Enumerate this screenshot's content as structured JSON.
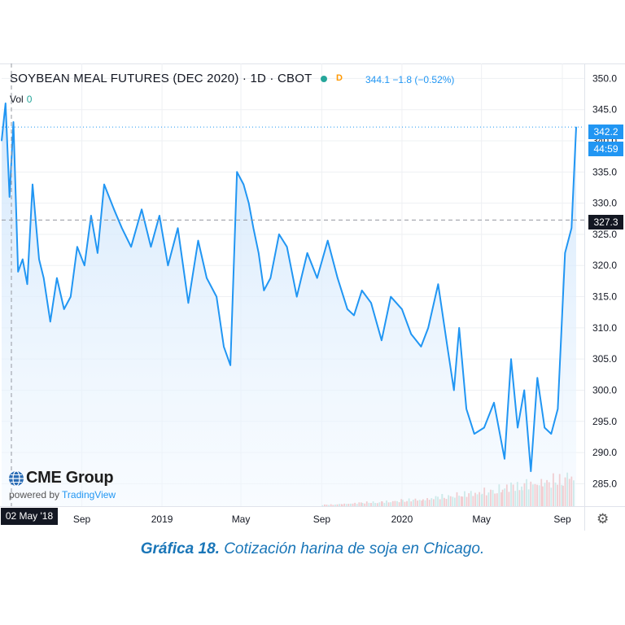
{
  "header": {
    "title": "SOYBEAN MEAL FUTURES (DEC 2020) · 1D · CBOT",
    "d_badge": "D",
    "quote": "344.1  −1.8 (−0.52%)",
    "vol_label": "Vol",
    "vol_value": "0"
  },
  "price_tags": {
    "last_price": "342.2",
    "countdown": "44:59",
    "crosshair_price": "327.3"
  },
  "crosshair_date": "02 May '18",
  "branding": {
    "logo_text": "CME Group",
    "powered_by": "powered by",
    "powered_link": "TradingView"
  },
  "caption": {
    "bold": "Gráfica 18.",
    "text": " Cotización harina de soja en Chicago."
  },
  "colors": {
    "line": "#2196f3",
    "volume_up": "#f2a0a0",
    "volume_down": "#a8dcd4",
    "grid": "#eef0f3",
    "crosshair": "#9598a1"
  },
  "chart_data": {
    "type": "area",
    "title": "SOYBEAN MEAL FUTURES (DEC 2020) · 1D · CBOT",
    "xlabel": "",
    "ylabel": "",
    "x_tick_labels": [
      "Sep",
      "2019",
      "May",
      "Sep",
      "2020",
      "May",
      "Sep"
    ],
    "x_tick_dates": [
      "2018-09-01",
      "2019-01-01",
      "2019-05-01",
      "2019-09-01",
      "2020-01-01",
      "2020-05-01",
      "2020-09-01"
    ],
    "xlim": [
      "2018-05-02",
      "2020-09-22"
    ],
    "y_ticks": [
      285,
      290,
      295,
      300,
      305,
      310,
      315,
      320,
      325,
      330,
      335,
      340,
      345,
      350
    ],
    "ylim": [
      281.4,
      352.4
    ],
    "grid": true,
    "series": [
      {
        "x": [
          "2018-05-02",
          "2018-05-08",
          "2018-05-14",
          "2018-05-20",
          "2018-05-27",
          "2018-06-03",
          "2018-06-10",
          "2018-06-18",
          "2018-06-28",
          "2018-07-05",
          "2018-07-15",
          "2018-07-25",
          "2018-08-05",
          "2018-08-15",
          "2018-08-25",
          "2018-09-05",
          "2018-09-15",
          "2018-09-25",
          "2018-10-05",
          "2018-10-20",
          "2018-11-01",
          "2018-11-15",
          "2018-12-01",
          "2018-12-15",
          "2018-12-28",
          "2019-01-10",
          "2019-01-25",
          "2019-02-10",
          "2019-02-25",
          "2019-03-10",
          "2019-03-25",
          "2019-04-05",
          "2019-04-15",
          "2019-04-25",
          "2019-05-05",
          "2019-05-13",
          "2019-05-20",
          "2019-05-28",
          "2019-06-05",
          "2019-06-15",
          "2019-06-28",
          "2019-07-10",
          "2019-07-25",
          "2019-08-10",
          "2019-08-25",
          "2019-09-10",
          "2019-09-25",
          "2019-10-10",
          "2019-10-20",
          "2019-11-01",
          "2019-11-15",
          "2019-12-01",
          "2019-12-15",
          "2020-01-01",
          "2020-01-15",
          "2020-01-30",
          "2020-02-10",
          "2020-02-25",
          "2020-03-10",
          "2020-03-20",
          "2020-03-28",
          "2020-04-08",
          "2020-04-20",
          "2020-05-05",
          "2020-05-20",
          "2020-06-05",
          "2020-06-15",
          "2020-06-25",
          "2020-07-05",
          "2020-07-15",
          "2020-07-25",
          "2020-08-05",
          "2020-08-15",
          "2020-08-25",
          "2020-09-05",
          "2020-09-15",
          "2020-09-22"
        ],
        "y": [
          340,
          346,
          331,
          343,
          319,
          321,
          317,
          333,
          321,
          318,
          311,
          318,
          313,
          315,
          323,
          320,
          328,
          322,
          333,
          329,
          326,
          323,
          329,
          323,
          328,
          320,
          326,
          314,
          324,
          318,
          315,
          307,
          304,
          335,
          333,
          330,
          326,
          322,
          316,
          318,
          325,
          323,
          315,
          322,
          318,
          324,
          318,
          313,
          312,
          316,
          314,
          308,
          315,
          313,
          309,
          307,
          310,
          317,
          307,
          300,
          310,
          297,
          293,
          294,
          298,
          289,
          305,
          294,
          300,
          287,
          302,
          294,
          293,
          297,
          322,
          326,
          342.2
        ]
      }
    ],
    "volume": {
      "x": [
        "2019-09-01",
        "2019-10-01",
        "2019-11-01",
        "2019-12-01",
        "2020-01-01",
        "2020-02-01",
        "2020-03-01",
        "2020-04-01",
        "2020-05-01",
        "2020-06-01",
        "2020-07-01",
        "2020-08-01",
        "2020-09-01",
        "2020-09-20"
      ],
      "y": [
        0.03,
        0.05,
        0.08,
        0.1,
        0.13,
        0.16,
        0.22,
        0.27,
        0.32,
        0.42,
        0.5,
        0.55,
        0.62,
        0.8
      ]
    }
  }
}
